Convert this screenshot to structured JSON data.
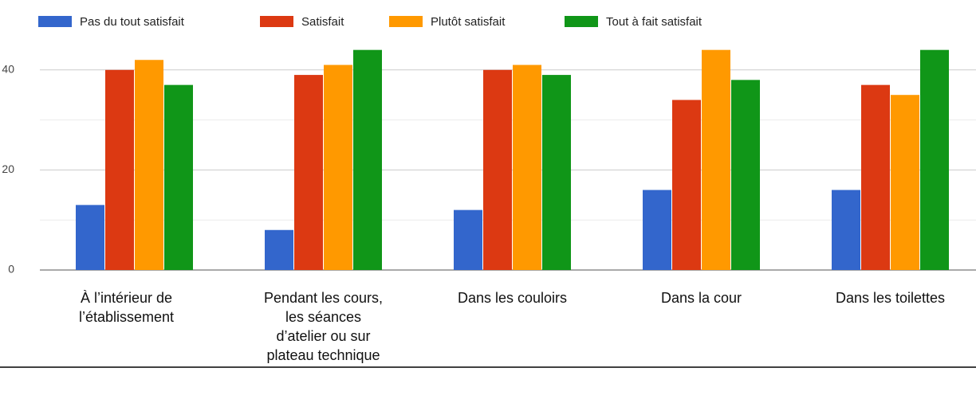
{
  "chart_data": {
    "type": "bar",
    "categories": [
      "À l’intérieur de l’établissement",
      "Pendant les cours, les séances d’atelier ou sur plateau technique",
      "Dans les couloirs",
      "Dans la cour",
      "Dans les toilettes"
    ],
    "series": [
      {
        "name": "Pas du tout satisfait",
        "color": "#3366cc",
        "values": [
          13,
          8,
          12,
          16,
          16
        ]
      },
      {
        "name": "Satisfait",
        "color": "#dc3912",
        "values": [
          40,
          39,
          40,
          34,
          37
        ]
      },
      {
        "name": "Plutôt satisfait",
        "color": "#ff9900",
        "values": [
          42,
          41,
          41,
          44,
          35
        ]
      },
      {
        "name": "Tout à fait satisfait",
        "color": "#109618",
        "values": [
          37,
          44,
          39,
          38,
          44
        ]
      }
    ],
    "ylim": [
      0,
      50
    ],
    "yticks": [
      0,
      20,
      40
    ],
    "minor_yticks": [
      10,
      30
    ],
    "grid": true
  }
}
